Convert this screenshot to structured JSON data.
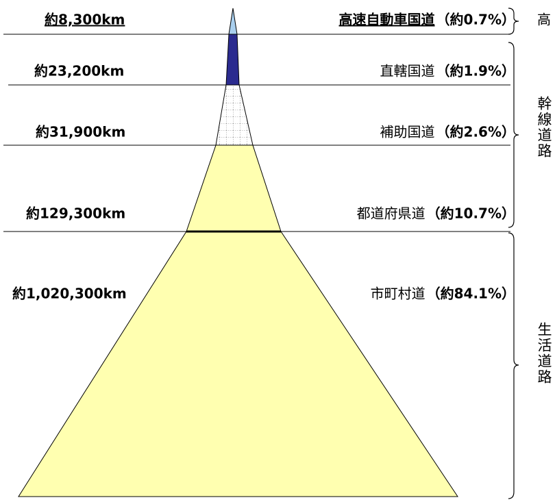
{
  "levels": [
    {
      "length": "約8,300km",
      "name": "高速自動車国道",
      "share": "（約0.7%）"
    },
    {
      "length": "約23,200km",
      "name": "直轄国道",
      "share": "（約1.9%）"
    },
    {
      "length": "約31,900km",
      "name": "補助国道",
      "share": "（約2.6%）"
    },
    {
      "length": "約129,300km",
      "name": "都道府県道",
      "share": "（約10.7%）"
    },
    {
      "length": "約1,020,300km",
      "name": "市町村道",
      "share": "（約84.1%）"
    }
  ],
  "groups": [
    "高",
    "幹線道路",
    "生活道路"
  ]
}
